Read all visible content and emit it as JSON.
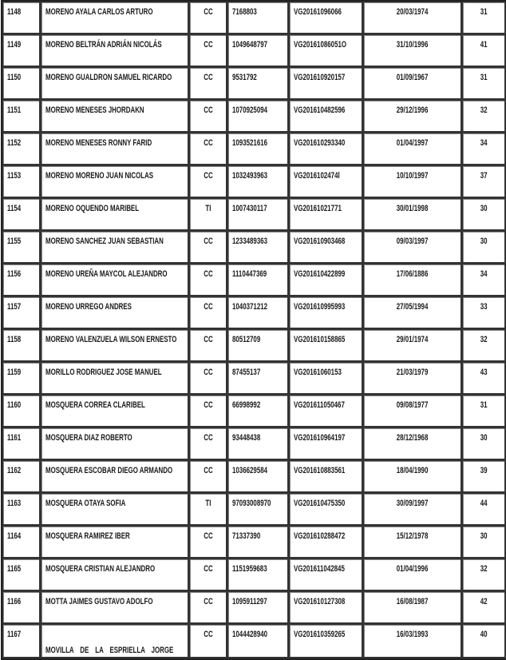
{
  "rows": [
    {
      "no": "1148",
      "name": "MORENO AYALA CARLOS ARTURO",
      "type": "CC",
      "doc": "7168803",
      "code": "VG20161096066",
      "date": "20/03/1974",
      "age": "31"
    },
    {
      "no": "1149",
      "name": "MORENO BELTRÁN ADRIÁN NICOLÁS",
      "type": "CC",
      "doc": "1049648797",
      "code": "VG20161086051O",
      "date": "31/10/1996",
      "age": "41"
    },
    {
      "no": "1150",
      "name": "MORENO GUALDRON SAMUEL RICARDO",
      "type": "CC",
      "doc": "9531792",
      "code": "VG201610920157",
      "date": "01/09/1967",
      "age": "31"
    },
    {
      "no": "1151",
      "name": "MORENO MENESES JHORDAKN",
      "type": "CC",
      "doc": "1070925094",
      "code": "VG201610482596",
      "date": "29/12/1996",
      "age": "32"
    },
    {
      "no": "1152",
      "name": "MORENO MENESES RONNY FARID",
      "type": "CC",
      "doc": "1093521616",
      "code": "VG201610293340",
      "date": "01/04/1997",
      "age": "34"
    },
    {
      "no": "1153",
      "name": "MORENO MORENO JUAN NICOLAS",
      "type": "CC",
      "doc": "1032493963",
      "code": "VG2016102474l",
      "date": "10/10/1997",
      "age": "37"
    },
    {
      "no": "1154",
      "name": "MORENO OQUENDO MARIBEL",
      "type": "TI",
      "doc": "1007430117",
      "code": "VG20161021771",
      "date": "30/01/1998",
      "age": "30"
    },
    {
      "no": "1155",
      "name": "MORENO SANCHEZ JUAN SEBASTIAN",
      "type": "CC",
      "doc": "1233489363",
      "code": "VG201610903468",
      "date": "09/03/1997",
      "age": "30"
    },
    {
      "no": "1156",
      "name": "MORENO UREÑA MAYCOL ALEJANDRO",
      "type": "CC",
      "doc": "1110447369",
      "code": "VG201610422899",
      "date": "17/06/1886",
      "age": "34"
    },
    {
      "no": "1157",
      "name": "MORENO URREGO ANDRES",
      "type": "CC",
      "doc": "1040371212",
      "code": "VG201610995993",
      "date": "27/05/1994",
      "age": "33"
    },
    {
      "no": "1158",
      "name": "MORENO VALENZUELA WILSON ERNESTO",
      "type": "CC",
      "doc": "80512709",
      "code": "VG201610158865",
      "date": "29/01/1974",
      "age": "32"
    },
    {
      "no": "1159",
      "name": "MORILLO RODRIGUEZ JOSE MANUEL",
      "type": "CC",
      "doc": "87455137",
      "code": "VG20161060153",
      "date": "21/03/1979",
      "age": "43"
    },
    {
      "no": "1160",
      "name": "MOSQUERA CORREA CLARIBEL",
      "type": "CC",
      "doc": "66998992",
      "code": "VG201611050467",
      "date": "09/08/1977",
      "age": "31"
    },
    {
      "no": "1161",
      "name": "MOSQUERA DIAZ ROBERTO",
      "type": "CC",
      "doc": "93448438",
      "code": "VG201610964197",
      "date": "28/12/1968",
      "age": "30"
    },
    {
      "no": "1162",
      "name": "MOSQUERA ESCOBAR DIEGO ARMANDO",
      "type": "CC",
      "doc": "1036629584",
      "code": "VG201610883561",
      "date": "18/04/1990",
      "age": "39"
    },
    {
      "no": "1163",
      "name": "MOSQUERA OTAYA SOFIA",
      "type": "TI",
      "doc": "97093008970",
      "code": "VG201610475350",
      "date": "30/09/1997",
      "age": "44"
    },
    {
      "no": "1164",
      "name": "MOSQUERA RAMIREZ IBER",
      "type": "CC",
      "doc": "71337390",
      "code": "VG201610288472",
      "date": "15/12/1978",
      "age": "30"
    },
    {
      "no": "1165",
      "name": "MOSQUERA  CRISTIAN ALEJANDRO",
      "type": "CC",
      "doc": "1151959683",
      "code": "VG201611042845",
      "date": "01/04/1996",
      "age": "32"
    },
    {
      "no": "1166",
      "name": "MOTTA JAIMES GUSTAVO ADOLFO",
      "type": "CC",
      "doc": "1095911297",
      "code": "VG201610127308",
      "date": "16/08/1987",
      "age": "42"
    },
    {
      "no": "1167",
      "name": "MOVILLA DE LA ESPRIELLA JORGE",
      "type": "CC",
      "doc": "1044428940",
      "code": "VG201610359265",
      "date": "16/03/1993",
      "age": "40"
    }
  ]
}
